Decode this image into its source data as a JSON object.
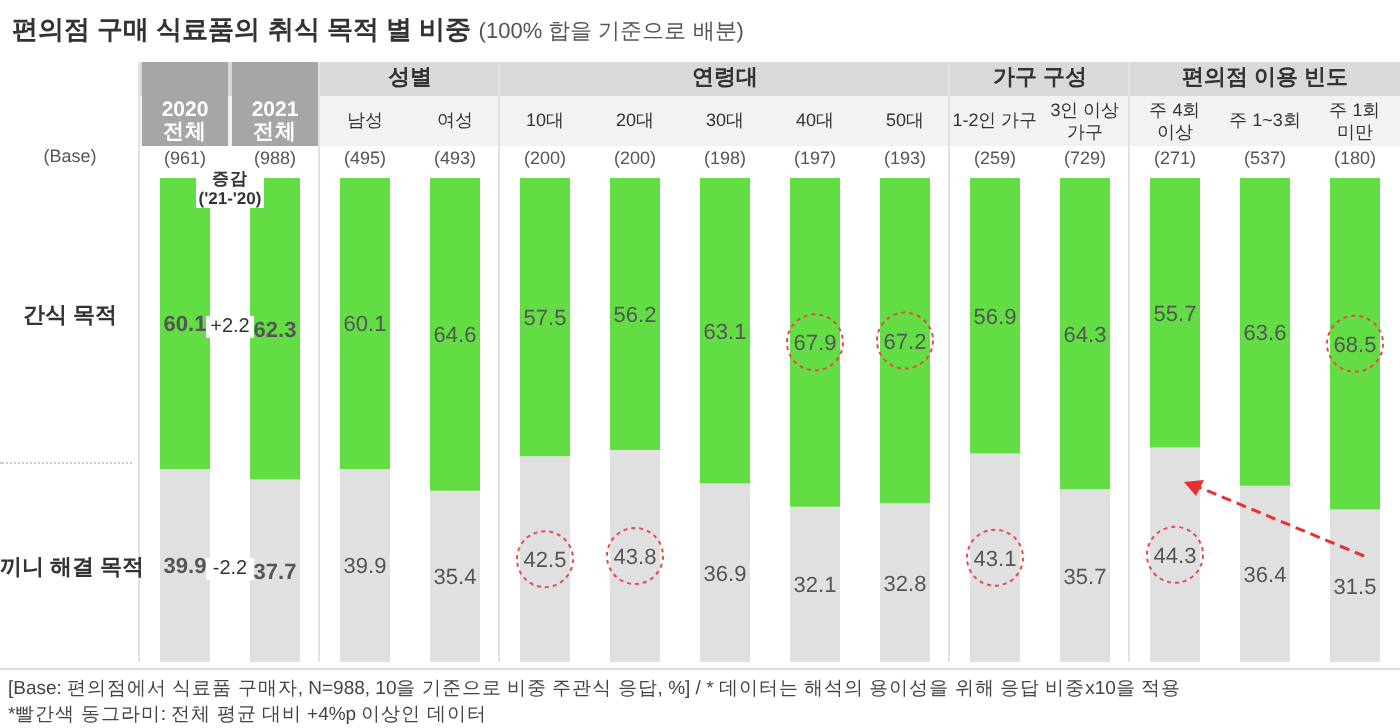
{
  "chart_data": {
    "type": "bar",
    "title": "편의점 구매 식료품의 취식 목적 별 비중",
    "subtitle": "(100% 합을 기준으로 배분)",
    "stacked": true,
    "data_labels": true,
    "ylim": [
      0,
      100
    ],
    "categories": [
      "2020 전체",
      "2021 전체",
      "남성",
      "여성",
      "10대",
      "20대",
      "30대",
      "40대",
      "50대",
      "1-2인 가구",
      "3인 이상 가구",
      "주 4회 이상",
      "주 1~3회",
      "주 1회 미만"
    ],
    "series": [
      {
        "name": "끼니 해결 목적",
        "color": "#e0e0e0",
        "values": [
          39.9,
          37.7,
          39.9,
          35.4,
          42.5,
          43.8,
          36.9,
          32.1,
          32.8,
          43.1,
          35.7,
          44.3,
          36.4,
          31.5
        ]
      },
      {
        "name": "간식 목적",
        "color": "#62dd43",
        "values": [
          60.1,
          62.3,
          60.1,
          64.6,
          57.5,
          56.2,
          63.1,
          67.9,
          67.2,
          56.9,
          64.3,
          55.7,
          63.6,
          68.5
        ]
      }
    ],
    "annotations": [
      "성별",
      "연령대",
      "가구 구성",
      "편의점 이용 빈도",
      "(Base)",
      "(961)",
      "(988)",
      "(495)",
      "(493)",
      "(200)",
      "(200)",
      "(198)",
      "(197)",
      "(193)",
      "(259)",
      "(729)",
      "(271)",
      "(537)",
      "(180)",
      "증감 ('21-'20)",
      "+2.2",
      "-2.2",
      "[Base: 편의점에서 식료품 구매자, N=988, 10을 기준으로 비중 주관식 응답, %]  / * 데이터는 해석의 용이성을 위해 응답 비중x10을 적용",
      "*빨간색 동그라미: 전체 평균 대비 +4%p 이상인 데이터"
    ]
  }
}
